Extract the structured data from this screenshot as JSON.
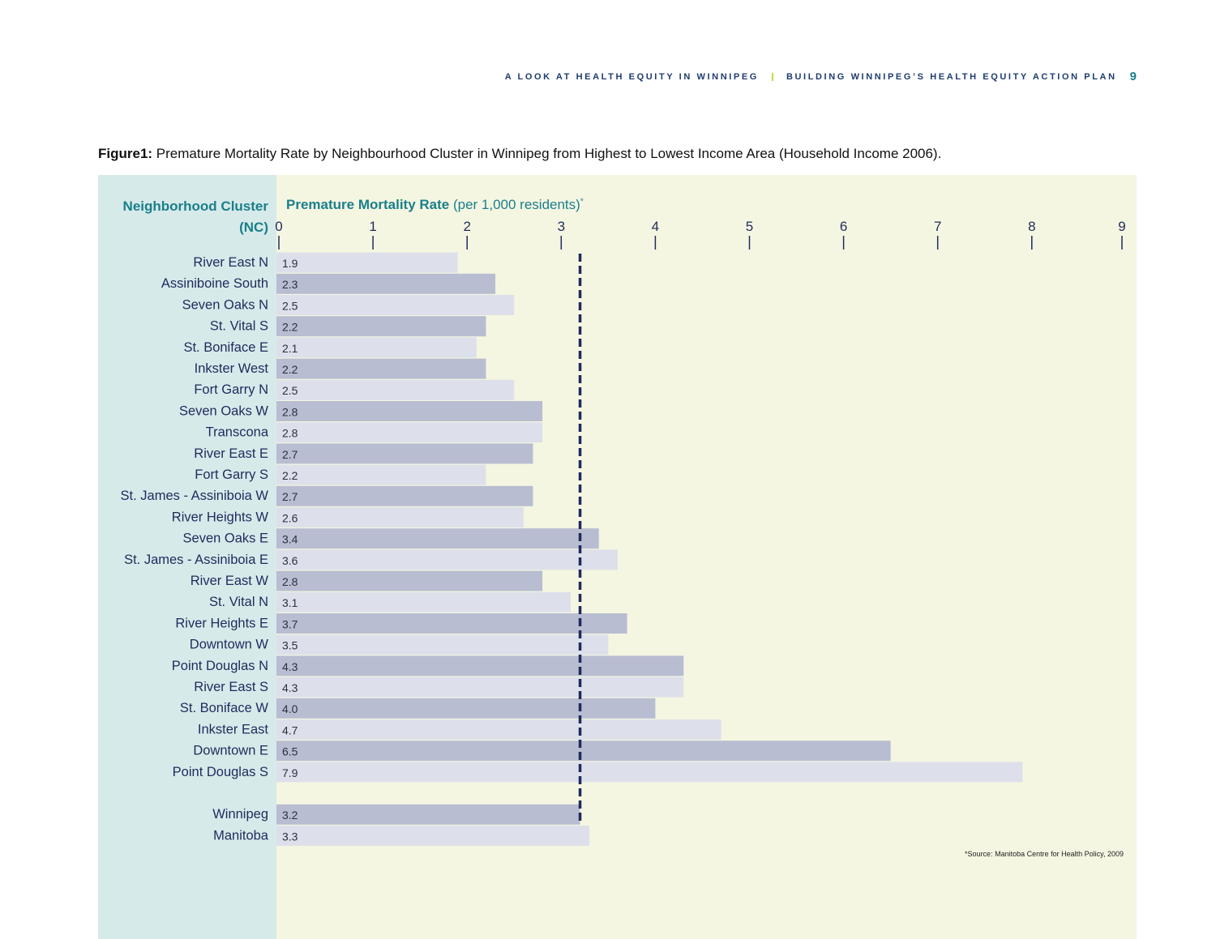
{
  "running_header": {
    "left": "A LOOK AT HEALTH EQUITY IN WINNIPEG",
    "right": "BUILDING WINNIPEG’S HEALTH EQUITY ACTION PLAN",
    "page_number": "9"
  },
  "caption": {
    "label": "Figure1:",
    "text": " Premature Mortality Rate by Neighbourhood Cluster in Winnipeg from Highest to Lowest Income Area (Household Income 2006)."
  },
  "colors": {
    "bar_light": "#dde0ea",
    "bar_dark": "#b8bdd1",
    "reference_line": "#1f2a5c",
    "label_text": "#1f2a5c",
    "teal": "#1a7f8a"
  },
  "chart_data": {
    "type": "bar",
    "orientation": "horizontal",
    "ylabel": "Neighborhood Cluster (NC)",
    "xlabel_bold": "Premature Mortality Rate",
    "xlabel_rest": " (per 1,000 residents)",
    "xlabel_mark": "*",
    "xlim": [
      0,
      9
    ],
    "x_ticks": [
      "0",
      "1",
      "2",
      "3",
      "4",
      "5",
      "6",
      "7",
      "8",
      "9"
    ],
    "reference_line": {
      "value": 3.2
    },
    "categories": [
      "River East N",
      "Assiniboine South",
      "Seven Oaks N",
      "St. Vital S",
      "St. Boniface E",
      "Inkster West",
      "Fort Garry N",
      "Seven Oaks W",
      "Transcona",
      "River East E",
      "Fort Garry S",
      "St. James - Assiniboia W",
      "River Heights W",
      "Seven Oaks E",
      "St. James - Assiniboia E",
      "River East W",
      "St. Vital N",
      "River Heights E",
      "Downtown W",
      "Point Douglas N",
      "River East S",
      "St. Boniface W",
      "Inkster East",
      "Downtown E",
      "Point Douglas S",
      "Winnipeg",
      "Manitoba"
    ],
    "values": [
      1.9,
      2.3,
      2.5,
      2.2,
      2.1,
      2.2,
      2.5,
      2.8,
      2.8,
      2.7,
      2.2,
      2.7,
      2.6,
      3.4,
      3.6,
      2.8,
      3.1,
      3.7,
      3.5,
      4.3,
      4.3,
      4.0,
      4.7,
      6.5,
      7.9,
      3.2,
      3.3
    ],
    "value_labels": [
      "1.9",
      "2.3",
      "2.5",
      "2.2",
      "2.1",
      "2.2",
      "2.5",
      "2.8",
      "2.8",
      "2.7",
      "2.2",
      "2.7",
      "2.6",
      "3.4",
      "3.6",
      "2.8",
      "3.1",
      "3.7",
      "3.5",
      "4.3",
      "4.3",
      "4.0",
      "4.7",
      "6.5",
      "7.9",
      "3.2",
      "3.3"
    ]
  },
  "source_note": "*Source: Manitoba Centre for Health Policy, 2009"
}
